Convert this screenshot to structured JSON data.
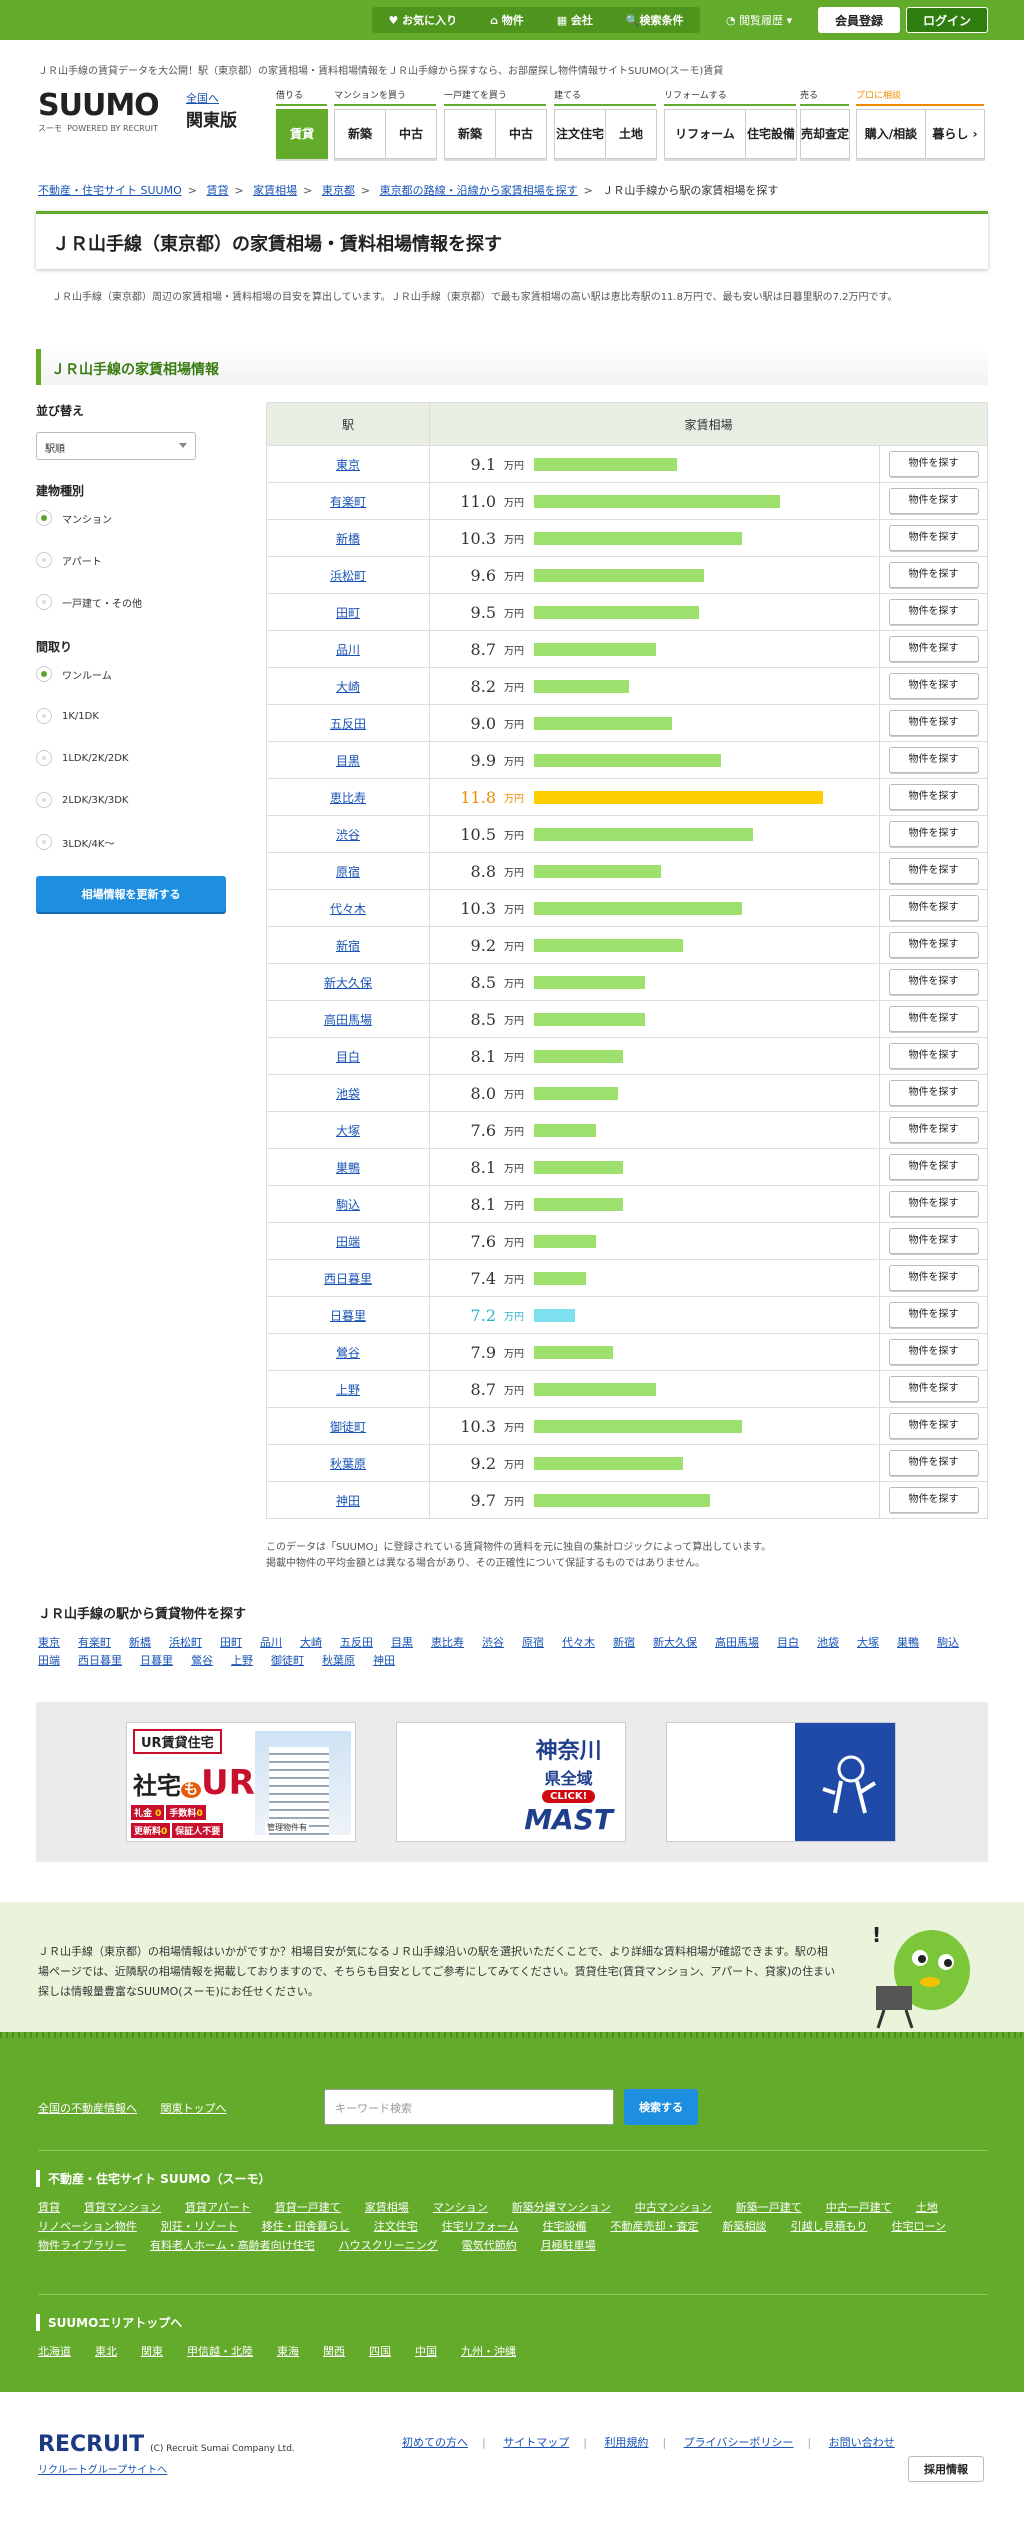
{
  "topbar": {
    "favorites": "お気に入り",
    "property": "物件",
    "company": "会社",
    "search_conditions": "検索条件",
    "history": "閲覧履歴",
    "register": "会員登録",
    "login": "ログイン"
  },
  "tagline": "ＪＲ山手線の賃貸データを大公開！駅（東京都）の家賃相場・賃料相場情報をＪＲ山手線から探すなら、お部屋探し物件情報サイトSUUMO(スーモ)賃貸",
  "logo": {
    "name": "SUUMO",
    "kana": "スーモ",
    "powered": "POWERED BY RECRUIT"
  },
  "region": {
    "national": "全国へ",
    "name": "関東版"
  },
  "nav": {
    "groups": [
      {
        "label": "借りる",
        "items": [
          "賃貸"
        ]
      },
      {
        "label": "マンションを買う",
        "items": [
          "新築",
          "中古"
        ]
      },
      {
        "label": "一戸建てを買う",
        "items": [
          "新築",
          "中古"
        ]
      },
      {
        "label": "建てる",
        "items": [
          "注文住宅",
          "土地"
        ]
      },
      {
        "label": "リフォームする",
        "items": [
          "リフォーム",
          "住宅設備"
        ]
      },
      {
        "label": "売る",
        "items": [
          "売却査定"
        ]
      },
      {
        "label": "プロに相談",
        "items": [
          "購入/相談"
        ]
      }
    ],
    "more": "暮らし"
  },
  "breadcrumb": [
    "不動産・住宅サイト SUUMO",
    "賃貸",
    "家賃相場",
    "東京都",
    "東京都の路線・沿線から家賃相場を探す",
    "ＪＲ山手線から駅の家賃相場を探す"
  ],
  "page_title": "ＪＲ山手線（東京都）の家賃相場・賃料相場情報を探す",
  "intro": "ＪＲ山手線（東京都）周辺の家賃相場・賃料相場の目安を算出しています。ＪＲ山手線（東京都）で最も家賃相場の高い駅は恵比寿駅の11.8万円で、最も安い駅は日暮里駅の7.2万円です。",
  "section_title": "ＪＲ山手線の家賃相場情報",
  "sidebar": {
    "sort_label": "並び替え",
    "sort_value": "駅順",
    "building_label": "建物種別",
    "building_options": [
      "マンション",
      "アパート",
      "一戸建て・その他"
    ],
    "layout_label": "間取り",
    "layout_options": [
      "ワンルーム",
      "1K/1DK",
      "1LDK/2K/2DK",
      "2LDK/3K/3DK",
      "3LDK/4K〜"
    ],
    "update_button": "相場情報を更新する"
  },
  "table": {
    "col_station": "駅",
    "col_rent": "家賃相場",
    "unit": "万円",
    "button": "物件を探す",
    "rows": [
      {
        "station": "東京",
        "rent": 9.1
      },
      {
        "station": "有楽町",
        "rent": 11.0
      },
      {
        "station": "新橋",
        "rent": 10.3
      },
      {
        "station": "浜松町",
        "rent": 9.6
      },
      {
        "station": "田町",
        "rent": 9.5
      },
      {
        "station": "品川",
        "rent": 8.7
      },
      {
        "station": "大崎",
        "rent": 8.2
      },
      {
        "station": "五反田",
        "rent": 9.0
      },
      {
        "station": "目黒",
        "rent": 9.9
      },
      {
        "station": "恵比寿",
        "rent": 11.8,
        "mark": "hi"
      },
      {
        "station": "渋谷",
        "rent": 10.5
      },
      {
        "station": "原宿",
        "rent": 8.8
      },
      {
        "station": "代々木",
        "rent": 10.3
      },
      {
        "station": "新宿",
        "rent": 9.2
      },
      {
        "station": "新大久保",
        "rent": 8.5
      },
      {
        "station": "高田馬場",
        "rent": 8.5
      },
      {
        "station": "目白",
        "rent": 8.1
      },
      {
        "station": "池袋",
        "rent": 8.0
      },
      {
        "station": "大塚",
        "rent": 7.6
      },
      {
        "station": "巣鴨",
        "rent": 8.1
      },
      {
        "station": "駒込",
        "rent": 8.1
      },
      {
        "station": "田端",
        "rent": 7.6
      },
      {
        "station": "西日暮里",
        "rent": 7.4
      },
      {
        "station": "日暮里",
        "rent": 7.2,
        "mark": "lo"
      },
      {
        "station": "鶯谷",
        "rent": 7.9
      },
      {
        "station": "上野",
        "rent": 8.7
      },
      {
        "station": "御徒町",
        "rent": 10.3
      },
      {
        "station": "秋葉原",
        "rent": 9.2
      },
      {
        "station": "神田",
        "rent": 9.7
      }
    ]
  },
  "note": [
    "このデータは「SUUMO」に登録されている賃貸物件の賃料を元に独自の集計ロジックによって算出しています。",
    "掲載中物件の平均金額とは異なる場合があり、その正確性について保証するものではありません。"
  ],
  "station_links_title": "ＪＲ山手線の駅から賃貸物件を探す",
  "station_links": [
    "東京",
    "有楽町",
    "新橋",
    "浜松町",
    "田町",
    "品川",
    "大崎",
    "五反田",
    "目黒",
    "恵比寿",
    "渋谷",
    "原宿",
    "代々木",
    "新宿",
    "新大久保",
    "高田馬場",
    "目白",
    "池袋",
    "大塚",
    "巣鴨",
    "駒込",
    "田端",
    "西日暮里",
    "日暮里",
    "鶯谷",
    "上野",
    "御徒町",
    "秋葉原",
    "神田"
  ],
  "banners": {
    "ur": {
      "top": "UR賃貸住宅",
      "l1": "社宅",
      "l2": "も",
      "l3": "UR",
      "b1": "礼金",
      "b1v": "0",
      "b2": "手数料",
      "b2v": "0",
      "b3": "更新料",
      "b3v": "0",
      "b4": "保証人不要",
      "sub": "管理物件有"
    },
    "mast": {
      "l1": "神奈川",
      "l2": "県全域",
      "click": "CLICK!",
      "brand": "MAST"
    }
  },
  "green_text": "ＪＲ山手線（東京都）の相場情報はいかがですか？相場目安が気になるＪＲ山手線沿いの駅を選択いただくことで、より詳細な賃料相場が確認できます。駅の相場ページでは、近隣駅の相場情報を掲載しておりますので、そちらも目安としてご参考にしてみてください。賃貸住宅(賃貸マンション、アパート、貸家)の住まい探しは情報量豊富なSUUMO(スーモ)にお任せください。",
  "footer": {
    "top_links": [
      "全国の不動産情報へ",
      "関東トップへ"
    ],
    "kw_placeholder": "キーワード検索",
    "kw_button": "検索する",
    "site_title": "不動産・住宅サイト SUUMO（スーモ）",
    "site_links": [
      "賃貸",
      "賃貸マンション",
      "賃貸アパート",
      "賃貸一戸建て",
      "家賃相場",
      "マンション",
      "新築分譲マンション",
      "中古マンション",
      "新築一戸建て",
      "中古一戸建て",
      "土地",
      "リノベーション物件",
      "別荘・リゾート",
      "移住・田舎暮らし",
      "注文住宅",
      "住宅リフォーム",
      "住宅設備",
      "不動産売却・査定",
      "新築相談",
      "引越し見積もり",
      "住宅ローン",
      "物件ライブラリー",
      "有料老人ホーム・高齢者向け住宅",
      "ハウスクリーニング",
      "電気代節約",
      "月極駐車場"
    ],
    "area_title": "SUUMOエリアトップへ",
    "area_links": [
      "北海道",
      "東北",
      "関東",
      "甲信越・北陸",
      "東海",
      "関西",
      "四国",
      "中国",
      "九州・沖縄"
    ],
    "company_logo": "RECRUIT",
    "copyright": "(C) Recruit Sumai Company Ltd.",
    "group_site": "リクルートグループサイトへ",
    "bottom_links": [
      "初めての方へ",
      "サイトマップ",
      "利用規約",
      "プライバシーポリシー",
      "お問い合わせ"
    ],
    "recruit_button": "採用情報"
  },
  "colors": {
    "brand": "#63ab2b",
    "highest": "#f08a00",
    "lowest": "#2bb1d0",
    "bar": "#9ee06e"
  }
}
